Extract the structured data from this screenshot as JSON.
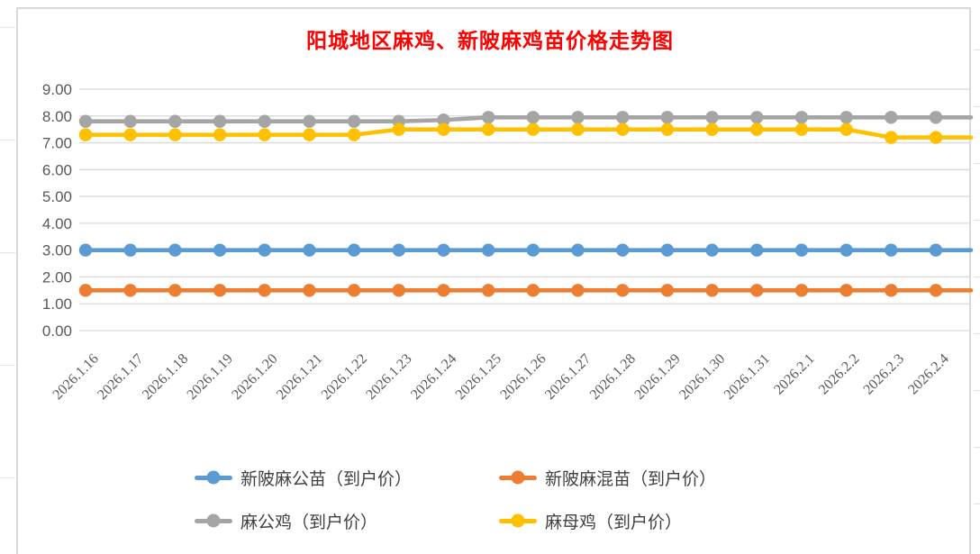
{
  "chart_data": {
    "type": "line",
    "title": "阳城地区麻鸡、新陂麻鸡苗价格走势图",
    "title_color": "#FF0000",
    "categories": [
      "2026.1.16",
      "2026.1.17",
      "2026.1.18",
      "2026.1.19",
      "2026.1.20",
      "2026.1.21",
      "2026.1.22",
      "2026.1.23",
      "2026.1.24",
      "2026.1.25",
      "2026.1.26",
      "2026.1.27",
      "2026.1.28",
      "2026.1.29",
      "2026.1.30",
      "2026.1.31",
      "2026.2.1",
      "2026.2.2",
      "2026.2.3",
      "2026.2.4"
    ],
    "series": [
      {
        "name": "新陂麻公苗（到户价）",
        "color": "#5B9BD5",
        "values": [
          3.0,
          3.0,
          3.0,
          3.0,
          3.0,
          3.0,
          3.0,
          3.0,
          3.0,
          3.0,
          3.0,
          3.0,
          3.0,
          3.0,
          3.0,
          3.0,
          3.0,
          3.0,
          3.0,
          3.0
        ]
      },
      {
        "name": "新陂麻混苗（到户价）",
        "color": "#ED7D31",
        "values": [
          1.5,
          1.5,
          1.5,
          1.5,
          1.5,
          1.5,
          1.5,
          1.5,
          1.5,
          1.5,
          1.5,
          1.5,
          1.5,
          1.5,
          1.5,
          1.5,
          1.5,
          1.5,
          1.5,
          1.5
        ]
      },
      {
        "name": "麻公鸡（到户价）",
        "color": "#A5A5A5",
        "values": [
          7.8,
          7.8,
          7.8,
          7.8,
          7.8,
          7.8,
          7.8,
          7.8,
          7.85,
          7.95,
          7.95,
          7.95,
          7.95,
          7.95,
          7.95,
          7.95,
          7.95,
          7.95,
          7.95,
          7.95
        ]
      },
      {
        "name": "麻母鸡（到户价）",
        "color": "#FFC000",
        "values": [
          7.3,
          7.3,
          7.3,
          7.3,
          7.3,
          7.3,
          7.3,
          7.5,
          7.5,
          7.5,
          7.5,
          7.5,
          7.5,
          7.5,
          7.5,
          7.5,
          7.5,
          7.5,
          7.2,
          7.2
        ]
      }
    ],
    "ylim": [
      0,
      9
    ],
    "ytick_step": 1,
    "ytick_labels": [
      "0.00",
      "1.00",
      "2.00",
      "3.00",
      "4.00",
      "5.00",
      "6.00",
      "7.00",
      "8.00",
      "9.00"
    ],
    "grid": true,
    "legend_position": "bottom",
    "axis_text_color": "#595959",
    "legend_text_color": "#404040",
    "gridline_color": "#D9D9D9"
  }
}
